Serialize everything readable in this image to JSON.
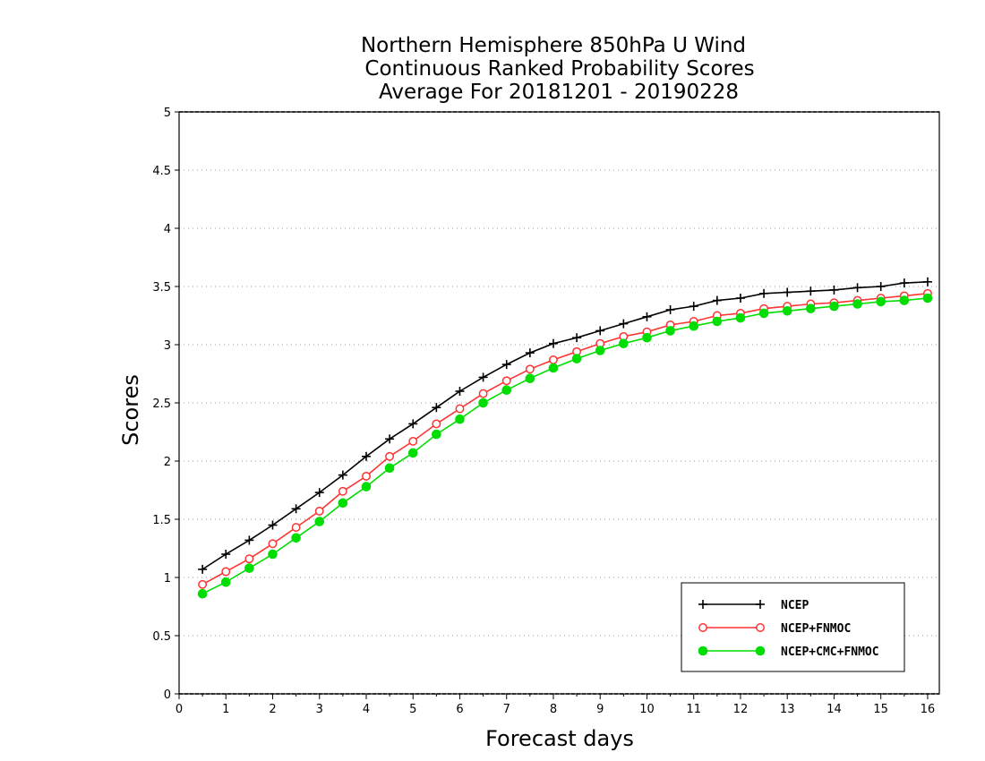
{
  "chart_data": {
    "type": "line",
    "title_lines": [
      "Northern Hemisphere 850hPa U Wind",
      "Continuous Ranked Probability Scores",
      "Average For 20181201 - 20190228"
    ],
    "xlabel": "Forecast days",
    "ylabel": "Scores",
    "xlim": [
      0,
      16.25
    ],
    "ylim": [
      0,
      5
    ],
    "xticks": [
      0,
      1,
      2,
      3,
      4,
      5,
      6,
      7,
      8,
      9,
      10,
      11,
      12,
      13,
      14,
      15,
      16
    ],
    "yticks": [
      0,
      0.5,
      1,
      1.5,
      2,
      2.5,
      3,
      3.5,
      4,
      4.5,
      5
    ],
    "ytick_labels": [
      "0",
      "0.5",
      "1",
      "1.5",
      "2",
      "2.5",
      "3",
      "3.5",
      "4",
      "4.5",
      "5"
    ],
    "grid": true,
    "legend_position": "bottom-right",
    "x": [
      0.5,
      1,
      1.5,
      2,
      2.5,
      3,
      3.5,
      4,
      4.5,
      5,
      5.5,
      6,
      6.5,
      7,
      7.5,
      8,
      8.5,
      9,
      9.5,
      10,
      10.5,
      11,
      11.5,
      12,
      12.5,
      13,
      13.5,
      14,
      14.5,
      15,
      15.5,
      16
    ],
    "series": [
      {
        "name": "NCEP",
        "color": "#000000",
        "marker": "plus",
        "values": [
          1.07,
          1.2,
          1.32,
          1.45,
          1.59,
          1.73,
          1.88,
          2.04,
          2.19,
          2.32,
          2.46,
          2.6,
          2.72,
          2.83,
          2.93,
          3.01,
          3.06,
          3.12,
          3.18,
          3.24,
          3.3,
          3.33,
          3.38,
          3.4,
          3.44,
          3.45,
          3.46,
          3.47,
          3.49,
          3.5,
          3.53,
          3.54
        ]
      },
      {
        "name": "NCEP+FNMOC",
        "color": "#ff3333",
        "marker": "open-circle",
        "values": [
          0.94,
          1.05,
          1.16,
          1.29,
          1.43,
          1.57,
          1.74,
          1.87,
          2.04,
          2.17,
          2.32,
          2.45,
          2.58,
          2.69,
          2.79,
          2.87,
          2.94,
          3.01,
          3.07,
          3.11,
          3.17,
          3.2,
          3.25,
          3.27,
          3.31,
          3.33,
          3.35,
          3.36,
          3.38,
          3.4,
          3.42,
          3.44
        ]
      },
      {
        "name": "NCEP+CMC+FNMOC",
        "color": "#00dd00",
        "marker": "filled-circle",
        "values": [
          0.86,
          0.96,
          1.08,
          1.2,
          1.34,
          1.48,
          1.64,
          1.78,
          1.94,
          2.07,
          2.23,
          2.36,
          2.5,
          2.61,
          2.71,
          2.8,
          2.88,
          2.95,
          3.01,
          3.06,
          3.12,
          3.16,
          3.2,
          3.23,
          3.27,
          3.29,
          3.31,
          3.33,
          3.35,
          3.37,
          3.38,
          3.4
        ]
      }
    ]
  }
}
